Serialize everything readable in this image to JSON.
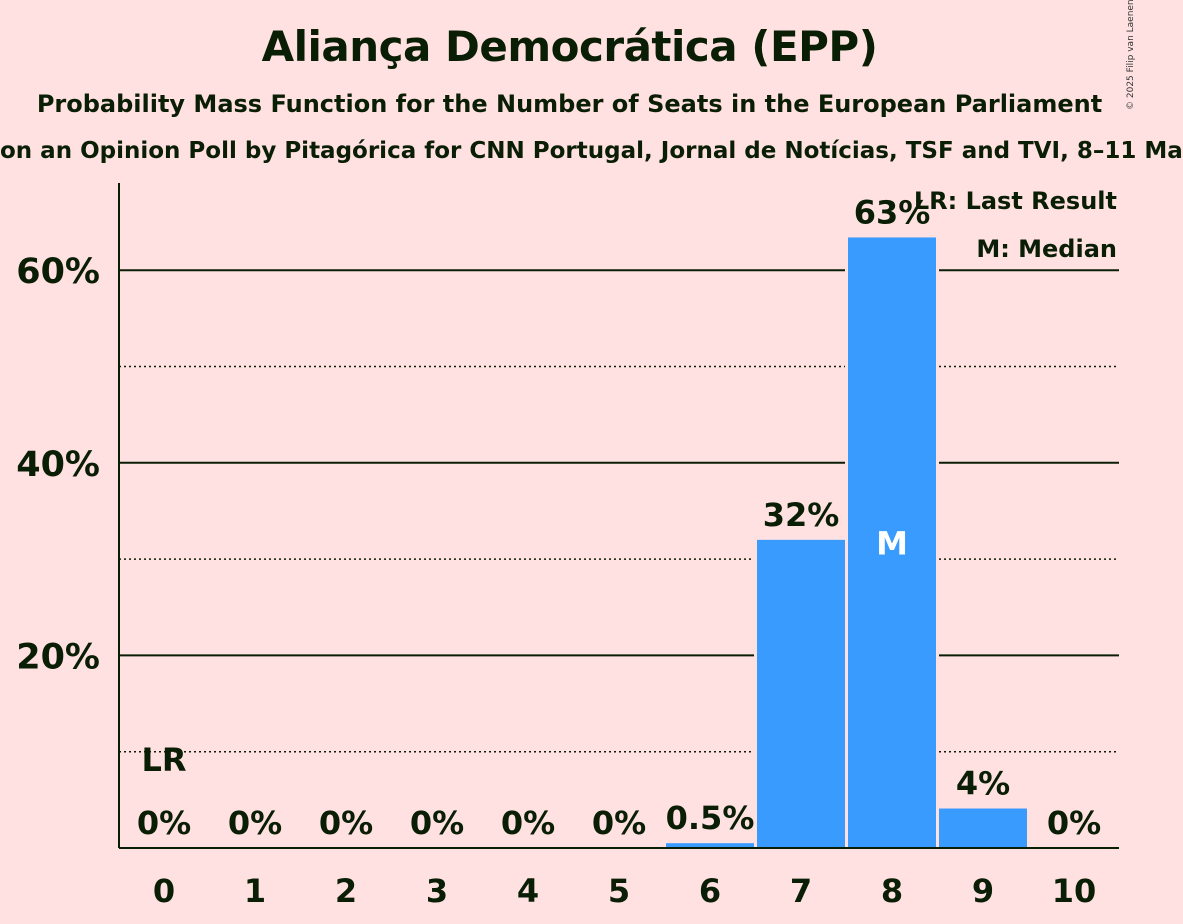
{
  "header": {
    "title": "Aliança Democrática (EPP)",
    "subtitle": "Probability Mass Function for the Number of Seats in the European Parliament",
    "subtitle2": "on an Opinion Poll by Pitagórica for CNN Portugal, Jornal de Notícias, TSF and TVI, 8–11 Ma",
    "copyright": "© 2025 Filip van Laenen"
  },
  "legend": {
    "lr": "LR: Last Result",
    "m": "M: Median"
  },
  "colors": {
    "background": "#FFE1E1",
    "bar": "#3A9BFF",
    "text": "#0A1E05"
  },
  "chart_data": {
    "type": "bar",
    "title": "Aliança Democrática (EPP)",
    "categories": [
      "0",
      "1",
      "2",
      "3",
      "4",
      "5",
      "6",
      "7",
      "8",
      "9",
      "10"
    ],
    "values": [
      0,
      0,
      0,
      0,
      0,
      0,
      0.5,
      32,
      63.4,
      4.1,
      0
    ],
    "value_labels": [
      "0%",
      "0%",
      "0%",
      "0%",
      "0%",
      "0%",
      "0.5%",
      "32%",
      "63%",
      "4%",
      "0%"
    ],
    "ylim": [
      0,
      69
    ],
    "yticks": [
      20,
      40,
      60
    ],
    "ytick_labels": [
      "20%",
      "40%",
      "60%"
    ],
    "minor_gridlines": [
      10,
      30,
      50
    ],
    "last_result": {
      "seat": "0",
      "label": "LR"
    },
    "median": {
      "seat": "8",
      "label": "M"
    },
    "legend_position": "top-right"
  }
}
